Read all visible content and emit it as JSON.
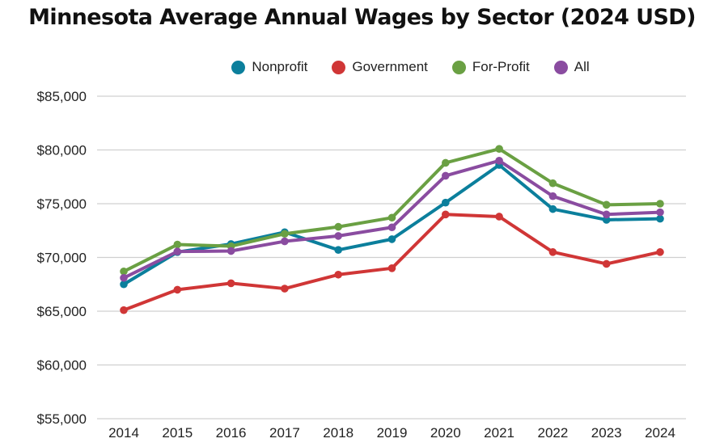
{
  "chart_data": {
    "type": "line",
    "title": "Minnesota Average Annual Wages by Sector (2024 USD)",
    "xlabel": "",
    "ylabel": "",
    "x": [
      "2014",
      "2015",
      "2016",
      "2017",
      "2018",
      "2019",
      "2020",
      "2021",
      "2022",
      "2023",
      "2024"
    ],
    "ylim": [
      55000,
      85000
    ],
    "yticks": [
      55000,
      60000,
      65000,
      70000,
      75000,
      80000,
      85000
    ],
    "ytick_labels": [
      "$55,000",
      "$60,000",
      "$65,000",
      "$70,000",
      "$75,000",
      "$80,000",
      "$85,000"
    ],
    "grid": true,
    "legend_position": "top-center",
    "series": [
      {
        "name": "Nonprofit",
        "color": "#0b7f9c",
        "values": [
          67500,
          70500,
          71250,
          72350,
          70700,
          71700,
          75100,
          78600,
          74500,
          73500,
          73600
        ]
      },
      {
        "name": "Government",
        "color": "#d03636",
        "values": [
          65100,
          67000,
          67600,
          67100,
          68400,
          69000,
          74000,
          73800,
          70500,
          69400,
          70500
        ]
      },
      {
        "name": "For-Profit",
        "color": "#6aa043",
        "values": [
          68700,
          71200,
          71050,
          72200,
          72850,
          73700,
          78800,
          80100,
          76900,
          74900,
          75000
        ]
      },
      {
        "name": "All",
        "color": "#8a4ca0",
        "values": [
          68100,
          70550,
          70600,
          71500,
          72000,
          72800,
          77600,
          79000,
          75700,
          74000,
          74200
        ]
      }
    ]
  }
}
